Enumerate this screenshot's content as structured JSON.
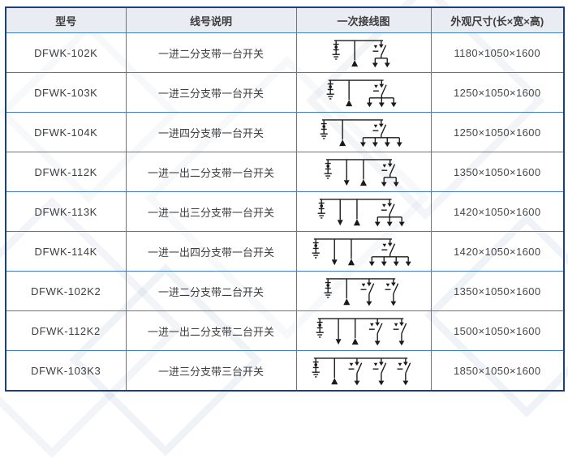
{
  "colors": {
    "border_outer": "#1d4077",
    "border_inner": "#3f7ec5",
    "header_bg": "#e9edf3",
    "text": "#3d3d3d",
    "diagram_stroke": "#1a1a1a",
    "watermark": "#adbcd2"
  },
  "table": {
    "headers": [
      {
        "id": "model",
        "label": "型号"
      },
      {
        "id": "description",
        "label": "线号说明"
      },
      {
        "id": "diagram",
        "label": "一次接线图"
      },
      {
        "id": "dimensions",
        "label": "外观尺寸(长×宽×高)"
      }
    ],
    "rows": [
      {
        "model": "DFWK-102K",
        "description": "一进二分支带一台开关",
        "dimensions": "1180×1050×1600",
        "diagram": {
          "arrester": true,
          "outs": 0,
          "cables": 1,
          "switches": [
            2
          ]
        }
      },
      {
        "model": "DFWK-103K",
        "description": "一进三分支带一台开关",
        "dimensions": "1250×1050×1600",
        "diagram": {
          "arrester": true,
          "outs": 0,
          "cables": 1,
          "switches": [
            3
          ]
        }
      },
      {
        "model": "DFWK-104K",
        "description": "一进四分支带一台开关",
        "dimensions": "1250×1050×1600",
        "diagram": {
          "arrester": true,
          "outs": 0,
          "cables": 1,
          "switches": [
            4
          ]
        }
      },
      {
        "model": "DFWK-112K",
        "description": "一进一出二分支带一台开关",
        "dimensions": "1350×1050×1600",
        "diagram": {
          "arrester": true,
          "outs": 1,
          "cables": 1,
          "switches": [
            2
          ]
        }
      },
      {
        "model": "DFWK-113K",
        "description": "一进一出三分支带一台开关",
        "dimensions": "1420×1050×1600",
        "diagram": {
          "arrester": true,
          "outs": 1,
          "cables": 1,
          "switches": [
            3
          ]
        }
      },
      {
        "model": "DFWK-114K",
        "description": "一进一出四分支带一台开关",
        "dimensions": "1420×1050×1600",
        "diagram": {
          "arrester": true,
          "outs": 1,
          "cables": 1,
          "switches": [
            4
          ]
        }
      },
      {
        "model": "DFWK-102K2",
        "description": "一进二分支带二台开关",
        "dimensions": "1350×1050×1600",
        "diagram": {
          "arrester": true,
          "outs": 0,
          "cables": 1,
          "switches": [
            1,
            1
          ]
        }
      },
      {
        "model": "DFWK-112K2",
        "description": "一进一出二分支带二台开关",
        "dimensions": "1500×1050×1600",
        "diagram": {
          "arrester": true,
          "outs": 1,
          "cables": 1,
          "switches": [
            1,
            1
          ]
        }
      },
      {
        "model": "DFWK-103K3",
        "description": "一进三分支带三台开关",
        "dimensions": "1850×1050×1600",
        "diagram": {
          "arrester": true,
          "outs": 0,
          "cables": 1,
          "switches": [
            1,
            1,
            1
          ]
        }
      }
    ]
  }
}
